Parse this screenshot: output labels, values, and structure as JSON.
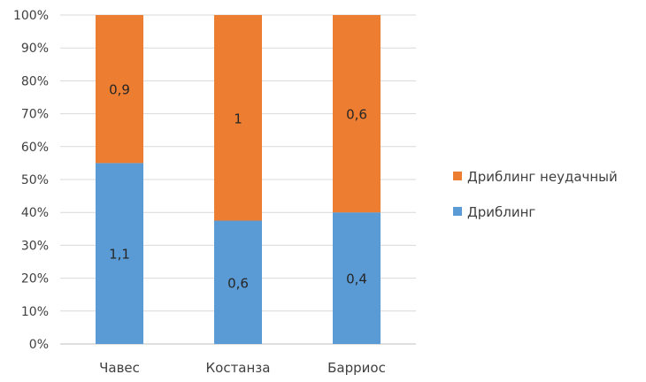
{
  "chart_data": {
    "type": "bar",
    "stacked": true,
    "normalized": true,
    "categories": [
      "Чавес",
      "Костанза",
      "Барриос"
    ],
    "series": [
      {
        "name": "Дриблинг",
        "values": [
          1.1,
          0.6,
          0.4
        ],
        "labels": [
          "1,1",
          "0,6",
          "0,4"
        ],
        "color": "#5b9bd5"
      },
      {
        "name": "Дриблинг неудачный",
        "values": [
          0.9,
          1,
          0.6
        ],
        "labels": [
          "0,9",
          "1",
          "0,6"
        ],
        "color": "#ed7d31"
      }
    ],
    "y_ticks": [
      "0%",
      "10%",
      "20%",
      "30%",
      "40%",
      "50%",
      "60%",
      "70%",
      "80%",
      "90%",
      "100%"
    ],
    "ylim": [
      0,
      100
    ],
    "grid": true,
    "legend_position": "right"
  }
}
